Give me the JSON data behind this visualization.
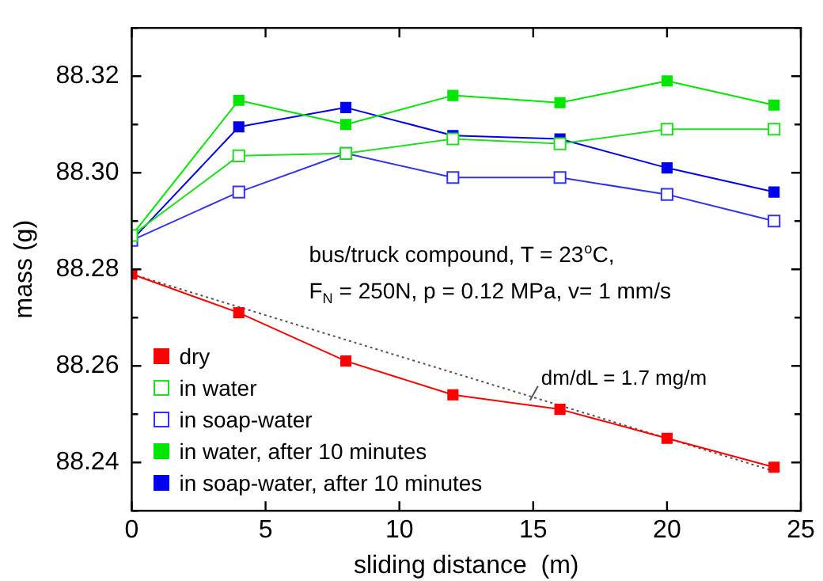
{
  "chart_data": {
    "type": "line",
    "xlabel": "sliding distance  (m)",
    "ylabel": "mass (g)",
    "x": [
      0,
      4,
      8,
      12,
      16,
      20,
      24
    ],
    "series": [
      {
        "name": "dry",
        "color": "#ff0000",
        "marker": "square",
        "values": [
          88.279,
          88.271,
          88.261,
          88.254,
          88.251,
          88.245,
          88.239
        ]
      },
      {
        "name": "in water",
        "color": "#22dd22",
        "marker": "square-open",
        "values": [
          88.287,
          88.3035,
          88.304,
          88.307,
          88.306,
          88.309,
          88.309
        ]
      },
      {
        "name": "in soap-water",
        "color": "#3333ee",
        "marker": "square-open",
        "values": [
          88.286,
          88.296,
          88.304,
          88.299,
          88.299,
          88.2955,
          88.29
        ]
      },
      {
        "name": "in water, after 10 minutes",
        "color": "#00e600",
        "marker": "square",
        "values": [
          88.287,
          88.315,
          88.31,
          88.316,
          88.3145,
          88.319,
          88.314
        ]
      },
      {
        "name": "in soap-water, after 10 minutes",
        "color": "#0000ee",
        "marker": "square",
        "values": [
          88.286,
          88.3095,
          88.3135,
          88.3077,
          88.307,
          88.301,
          88.296
        ]
      },
      {
        "type": "line",
        "color": "#555555",
        "line_style": "dotted",
        "marker": "none",
        "x": [
          0,
          24
        ],
        "values": [
          88.279,
          88.2382
        ]
      }
    ],
    "line_style": "solid",
    "xlim": [
      0,
      25
    ],
    "xticks": [
      0,
      5,
      10,
      15,
      20,
      25
    ],
    "ylim": [
      88.23,
      88.33
    ],
    "yticks": [
      {
        "value": 88.23,
        "label": null
      },
      {
        "value": 88.24,
        "label": "88.24"
      },
      {
        "value": 88.25,
        "label": null
      },
      {
        "value": 88.26,
        "label": "88.26"
      },
      {
        "value": 88.27,
        "label": null
      },
      {
        "value": 88.28,
        "label": "88.28"
      },
      {
        "value": 88.29,
        "label": null
      },
      {
        "value": 88.3,
        "label": "88.30"
      },
      {
        "value": 88.31,
        "label": null
      },
      {
        "value": 88.32,
        "label": "88.32"
      },
      {
        "value": 88.33,
        "label": null
      }
    ],
    "grid": false,
    "legend": "bottom left",
    "annotations": [
      "bus/truck compound, T = 23$^{o}$C,",
      "F$_{N}$ = 250N, p = 0.12 MPa, v= 1 mm/s",
      {
        "text": "dm/dL = 1.7 mg/m",
        "x": 15,
        "y": 88.2535
      }
    ]
  }
}
